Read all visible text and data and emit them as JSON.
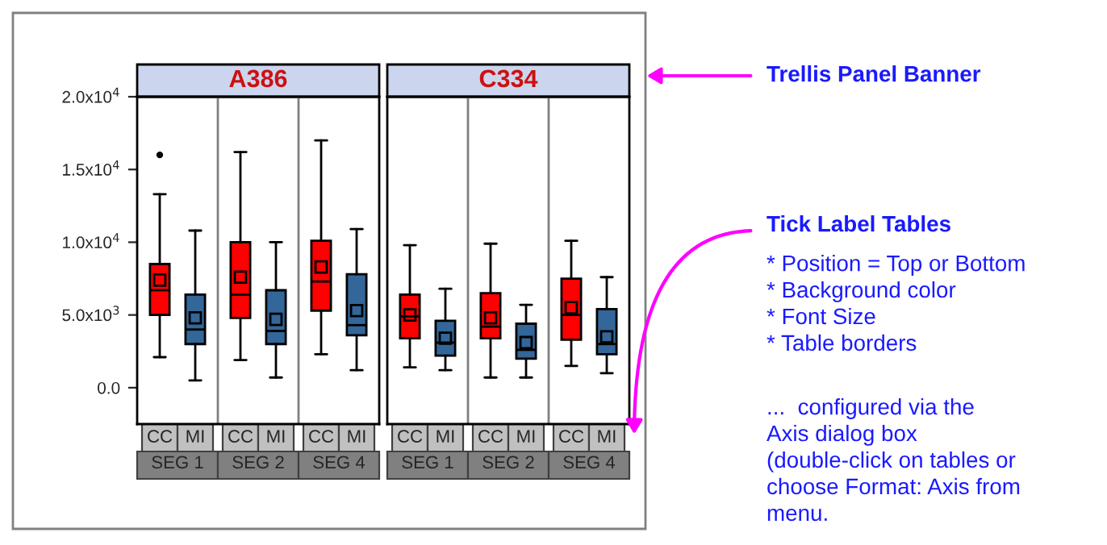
{
  "chart_data": [
    {
      "type": "box",
      "title": "A386",
      "categories": [
        "SEG 1",
        "SEG 2",
        "SEG 4"
      ],
      "ylim": [
        -2500,
        20000
      ],
      "yticks": [
        {
          "value": 0,
          "label": "0.0"
        },
        {
          "value": 5000,
          "label": "5.0x10$^{3}$"
        },
        {
          "value": 10000,
          "label": "1.0x10$^{4}$"
        },
        {
          "value": 15000,
          "label": "1.5x10$^{4}$"
        },
        {
          "value": 20000,
          "label": "2.0x10$^{4}$"
        }
      ],
      "marker": "square",
      "grid": false,
      "legend": false,
      "series": [
        {
          "name": "CC",
          "color": "#ff0000",
          "boxes": [
            {
              "low": 2100,
              "q1": 5000,
              "median": 6700,
              "q3": 8500,
              "high": 13300,
              "mean": 7400,
              "outliers": [
                16000
              ]
            },
            {
              "low": 1900,
              "q1": 4800,
              "median": 6400,
              "q3": 10000,
              "high": 16200,
              "mean": 7600
            },
            {
              "low": 2300,
              "q1": 5300,
              "median": 7300,
              "q3": 10100,
              "high": 17000,
              "mean": 8300
            }
          ]
        },
        {
          "name": "MI",
          "color": "#336699",
          "boxes": [
            {
              "low": 500,
              "q1": 3000,
              "median": 4000,
              "q3": 6400,
              "high": 10800,
              "mean": 4800
            },
            {
              "low": 700,
              "q1": 3000,
              "median": 3900,
              "q3": 6700,
              "high": 10000,
              "mean": 4700
            },
            {
              "low": 1200,
              "q1": 3600,
              "median": 4300,
              "q3": 7800,
              "high": 10900,
              "mean": 5300
            }
          ]
        }
      ],
      "annotations": [
        "Trellis Panel Banner",
        "Tick Label Tables",
        "* Position = Top or Bottom\n* Background color\n* Font Size\n* Table borders",
        "...  configured via the\nAxis dialog box\n(double-click on tables or\nchoose Format: Axis from\nmenu."
      ]
    },
    {
      "type": "box",
      "title": "C334",
      "categories": [
        "SEG 1",
        "SEG 2",
        "SEG 4"
      ],
      "ylim": [
        -2500,
        20000
      ],
      "tick_labels": "x",
      "marker": "square",
      "grid": false,
      "legend": false,
      "series": [
        {
          "name": "CC",
          "color": "#ff0000",
          "boxes": [
            {
              "low": 1400,
              "q1": 3400,
              "median": 4900,
              "q3": 6400,
              "high": 9800,
              "mean": 5000
            },
            {
              "low": 700,
              "q1": 3400,
              "median": 4200,
              "q3": 6500,
              "high": 9900,
              "mean": 4800
            },
            {
              "low": 1500,
              "q1": 3300,
              "median": 5000,
              "q3": 7500,
              "high": 10100,
              "mean": 5500
            }
          ]
        },
        {
          "name": "MI",
          "color": "#336699",
          "boxes": [
            {
              "low": 1200,
              "q1": 2200,
              "median": 3100,
              "q3": 4600,
              "high": 6800,
              "mean": 3400
            },
            {
              "low": 700,
              "q1": 2000,
              "median": 2600,
              "q3": 4400,
              "high": 5700,
              "mean": 3100
            },
            {
              "low": 1000,
              "q1": 2300,
              "median": 3000,
              "q3": 5400,
              "high": 7600,
              "mean": 3500
            }
          ]
        }
      ]
    }
  ]
}
